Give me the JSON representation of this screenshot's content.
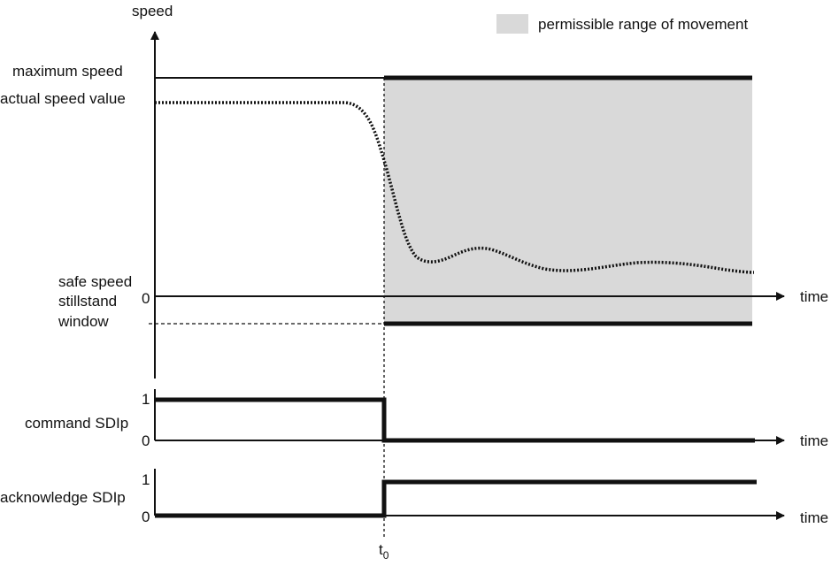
{
  "speed_chart": {
    "ylabel": "speed",
    "xlabel": "time",
    "labels": {
      "maximum_speed": "maximum speed",
      "actual_speed_value": "actual speed value",
      "safe_speed": "safe speed",
      "stillstand_line1": "stillstand",
      "stillstand_line2": "window",
      "zero": "0"
    },
    "legend": {
      "label": "permissible range of movement",
      "color": "#d9d9d9"
    }
  },
  "command_signal": {
    "label": "command SDIp",
    "xlabel": "time",
    "high": "1",
    "low": "0"
  },
  "acknowledge_signal": {
    "label": "acknowledge SDIp",
    "xlabel": "time",
    "high": "1",
    "low": "0"
  },
  "time_marker": {
    "label": "t",
    "subscript": "0"
  },
  "colors": {
    "line": "#111111",
    "range_fill": "#d9d9d9"
  }
}
